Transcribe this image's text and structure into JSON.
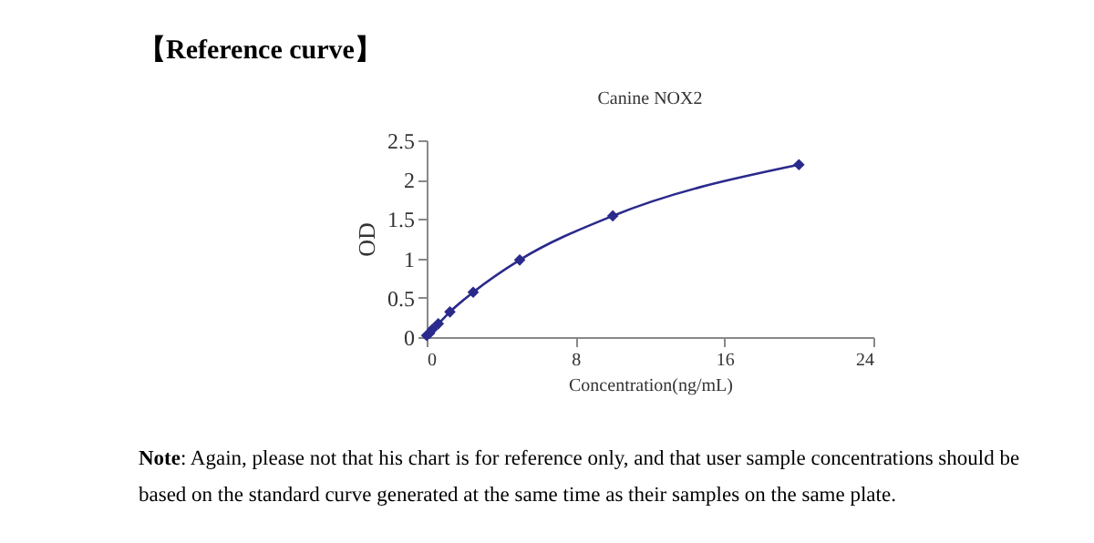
{
  "chart_data": {
    "type": "line",
    "title": "【Reference curve】",
    "subtitle": "Canine NOX2",
    "xlabel": "Concentration(ng/mL)",
    "ylabel": "OD",
    "x": [
      0,
      0.156,
      0.3125,
      0.625,
      1.25,
      2.5,
      5,
      10,
      20
    ],
    "series": [
      {
        "color": "#2a2a8c",
        "values": [
          0.02,
          0.05,
          0.1,
          0.17,
          0.32,
          0.57,
          0.98,
          1.54,
          2.19
        ]
      }
    ],
    "xlim": [
      0,
      24
    ],
    "xticks": [
      0,
      8,
      16,
      24
    ],
    "ylim": [
      0,
      2.5
    ],
    "yticks": [
      0,
      0.5,
      1,
      1.5,
      2,
      2.5
    ],
    "marker": "diamond",
    "line_style": "solid",
    "grid": false,
    "annotations": [
      "Note: Again, please not that his chart is for reference only, and that user sample concentrations should be based on the standard curve generated at the same time as their samples on the same plate."
    ]
  }
}
